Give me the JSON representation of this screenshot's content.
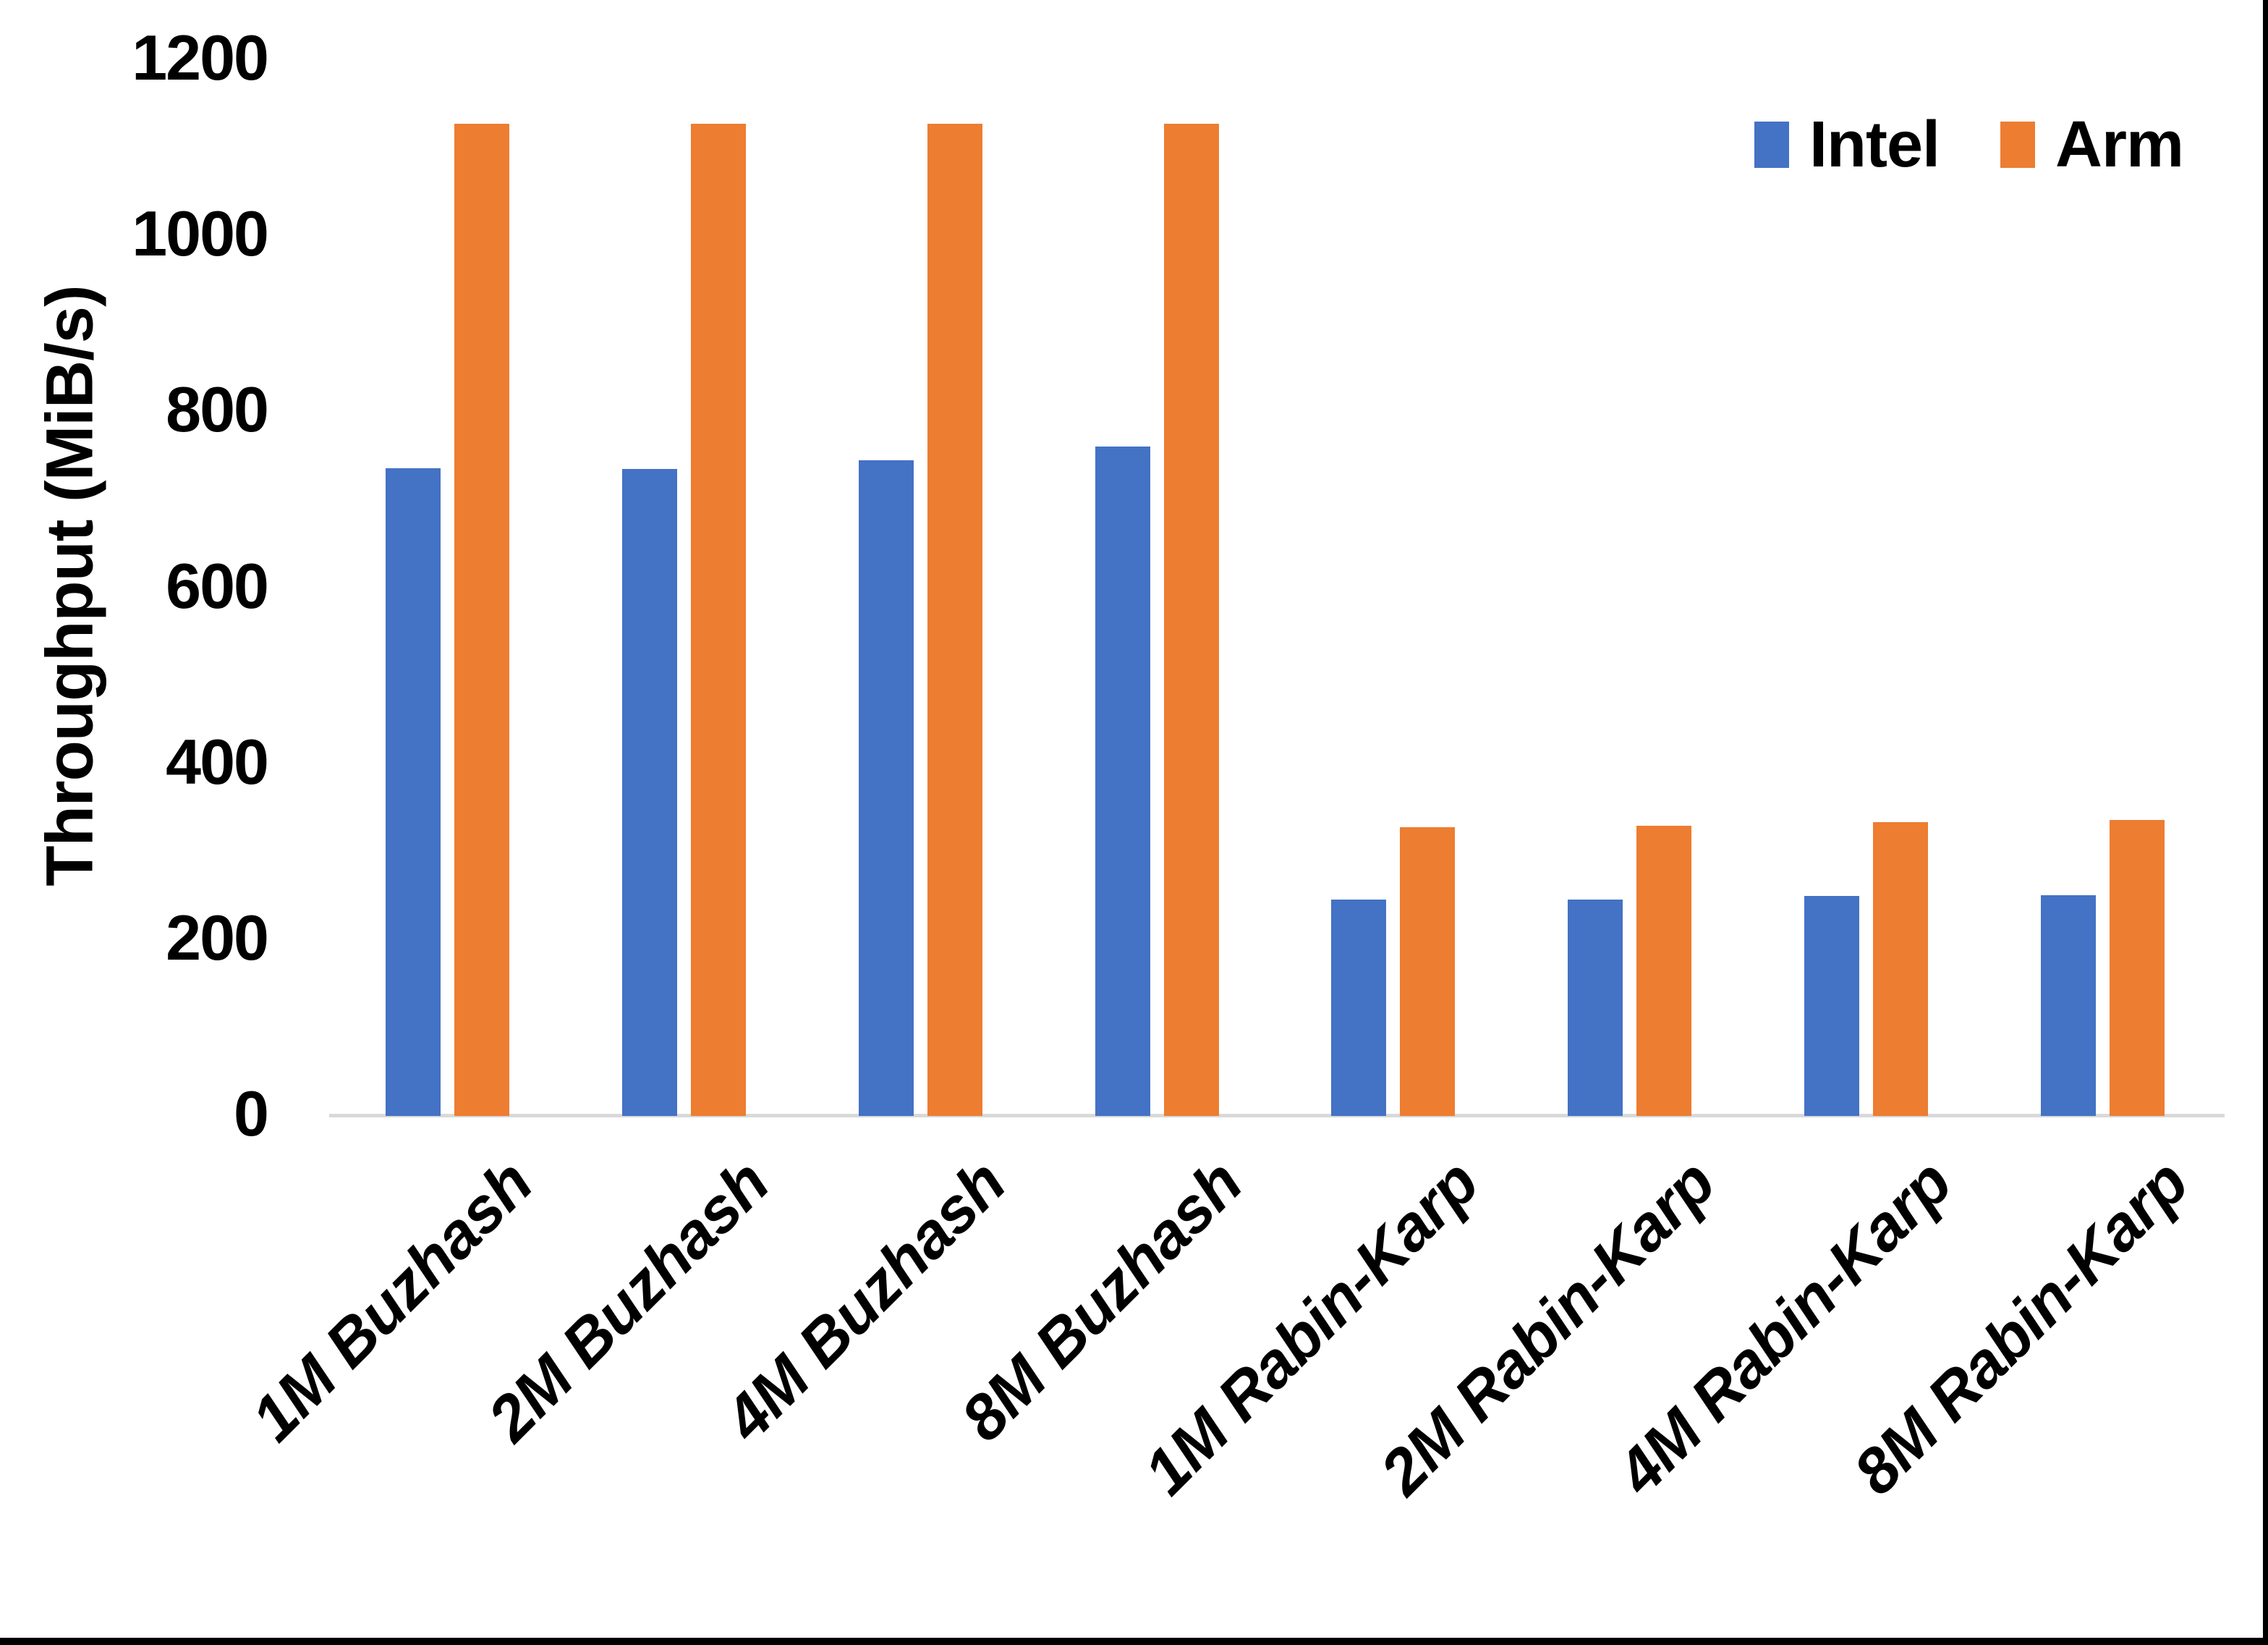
{
  "chart_data": {
    "type": "bar",
    "title": "",
    "ylabel": "Throughput (MiB/s)",
    "xlabel": "",
    "ylim": [
      0,
      1200
    ],
    "ytick_step": 200,
    "ytick_labels": [
      "0",
      "200",
      "400",
      "600",
      "800",
      "1000",
      "1200"
    ],
    "grid": false,
    "legend_position": "top-right",
    "categories": [
      "1M Buzhash",
      "2M Buzhash",
      "4M Buzhash",
      "8M Buzhash",
      "1M Rabin-Karp",
      "2M Rabin-Karp",
      "4M Rabin-Karp",
      "8M Rabin-Karp"
    ],
    "series": [
      {
        "name": "Intel",
        "color": "#4472C4",
        "values": [
          736,
          735,
          745,
          761,
          246,
          246,
          250,
          251
        ]
      },
      {
        "name": "Arm",
        "color": "#ED7D31",
        "values": [
          1128,
          1128,
          1128,
          1128,
          328,
          330,
          334,
          336
        ]
      }
    ],
    "colors": {
      "axis_line": "#D9D9D9",
      "text": "#000000",
      "background": "#FFFFFF",
      "window_edge": "#000000"
    }
  }
}
